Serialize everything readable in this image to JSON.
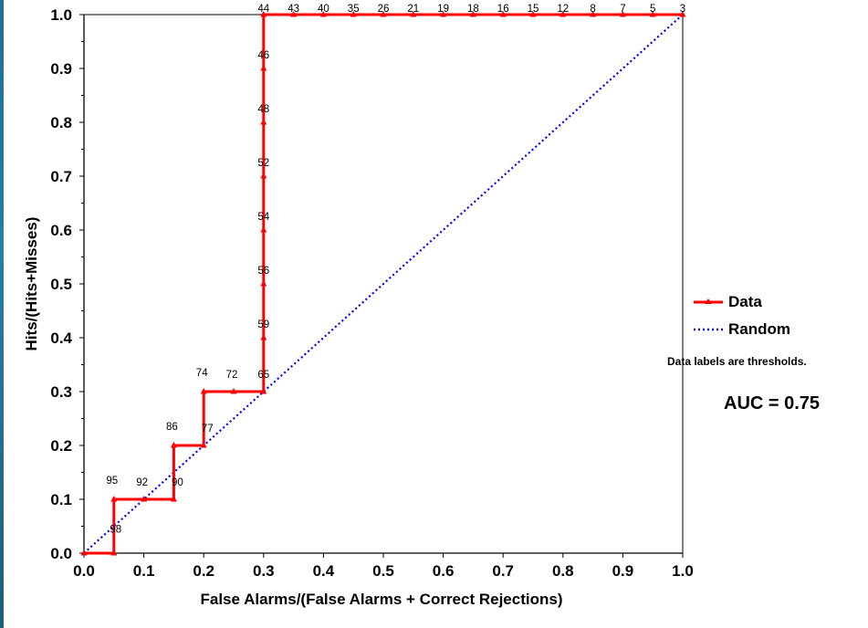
{
  "chart_data": {
    "type": "line",
    "xlabel": "False Alarms/(False Alarms + Correct Rejections)",
    "ylabel": "Hits/(Hits+Misses)",
    "xlim": [
      0,
      1
    ],
    "ylim": [
      0,
      1
    ],
    "xticks": [
      "0.0",
      "0.1",
      "0.2",
      "0.3",
      "0.4",
      "0.5",
      "0.6",
      "0.7",
      "0.8",
      "0.9",
      "1.0"
    ],
    "yticks": [
      "0.0",
      "0.1",
      "0.2",
      "0.3",
      "0.4",
      "0.5",
      "0.6",
      "0.7",
      "0.8",
      "0.9",
      "1.0"
    ],
    "grid": false,
    "legend_position": "right",
    "series": [
      {
        "name": "Data",
        "color": "#ff0000",
        "style": "solid-with-triangle-markers",
        "points": [
          {
            "x": 0.0,
            "y": 0.0,
            "label": ""
          },
          {
            "x": 0.05,
            "y": 0.0,
            "label": ""
          },
          {
            "x": 0.05,
            "y": 0.1,
            "label": "95"
          },
          {
            "x": 0.1,
            "y": 0.1,
            "label": "92"
          },
          {
            "x": 0.15,
            "y": 0.1,
            "label": "90"
          },
          {
            "x": 0.15,
            "y": 0.2,
            "label": "86"
          },
          {
            "x": 0.2,
            "y": 0.2,
            "label": "77"
          },
          {
            "x": 0.2,
            "y": 0.3,
            "label": "74"
          },
          {
            "x": 0.25,
            "y": 0.3,
            "label": "72"
          },
          {
            "x": 0.3,
            "y": 0.3,
            "label": "65"
          },
          {
            "x": 0.3,
            "y": 0.4,
            "label": "59"
          },
          {
            "x": 0.3,
            "y": 0.5,
            "label": "56"
          },
          {
            "x": 0.3,
            "y": 0.6,
            "label": "54"
          },
          {
            "x": 0.3,
            "y": 0.7,
            "label": "52"
          },
          {
            "x": 0.3,
            "y": 0.8,
            "label": "48"
          },
          {
            "x": 0.3,
            "y": 0.9,
            "label": "46"
          },
          {
            "x": 0.3,
            "y": 1.0,
            "label": "44"
          },
          {
            "x": 0.35,
            "y": 1.0,
            "label": "43"
          },
          {
            "x": 0.4,
            "y": 1.0,
            "label": "40"
          },
          {
            "x": 0.45,
            "y": 1.0,
            "label": "35"
          },
          {
            "x": 0.5,
            "y": 1.0,
            "label": "26"
          },
          {
            "x": 0.55,
            "y": 1.0,
            "label": "21"
          },
          {
            "x": 0.6,
            "y": 1.0,
            "label": "19"
          },
          {
            "x": 0.65,
            "y": 1.0,
            "label": "18"
          },
          {
            "x": 0.7,
            "y": 1.0,
            "label": "16"
          },
          {
            "x": 0.75,
            "y": 1.0,
            "label": "15"
          },
          {
            "x": 0.8,
            "y": 1.0,
            "label": "12"
          },
          {
            "x": 0.85,
            "y": 1.0,
            "label": "8"
          },
          {
            "x": 0.9,
            "y": 1.0,
            "label": "7"
          },
          {
            "x": 0.95,
            "y": 1.0,
            "label": "5"
          },
          {
            "x": 1.0,
            "y": 1.0,
            "label": "3"
          }
        ],
        "extra_labels": [
          {
            "x": 0.05,
            "y": 0.05,
            "label": "98"
          }
        ]
      },
      {
        "name": "Random",
        "color": "#0000ff",
        "style": "dotted",
        "points": [
          {
            "x": 0.0,
            "y": 0.0
          },
          {
            "x": 1.0,
            "y": 1.0
          }
        ]
      }
    ],
    "annotations": {
      "note": "Data labels are thresholds.",
      "auc": "AUC = 0.75"
    }
  }
}
